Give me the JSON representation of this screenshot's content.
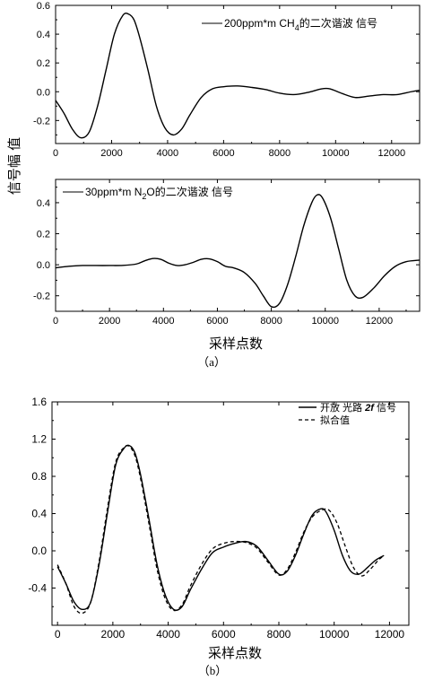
{
  "shared": {
    "ylabel": "信号幅 值",
    "xlabel": "采样点数"
  },
  "captions": {
    "a": "（a）",
    "b": "（b）"
  },
  "chart_data": [
    {
      "type": "line",
      "xlim": [
        0,
        13000
      ],
      "ylim": [
        -0.36,
        0.6
      ],
      "xticks": [
        0,
        2000,
        4000,
        6000,
        8000,
        10000,
        12000
      ],
      "yticks": [
        -0.2,
        0.0,
        0.2,
        0.4,
        0.6
      ],
      "xtick_labels": [
        "0",
        "2000",
        "4000",
        "6000",
        "8000",
        "10000",
        "12000"
      ],
      "ytick_labels": [
        "-0.2",
        "0.0",
        "0.2",
        "0.4",
        "0.6"
      ],
      "legend": {
        "position": "top-right",
        "prefix": "200ppm*m CH",
        "sub": "4",
        "suffix": "的二次谐波  信号"
      },
      "series": [
        {
          "name": "200ppm*m CH4的二次谐波  信号",
          "line": "solid",
          "x": [
            0,
            300,
            600,
            900,
            1200,
            1500,
            1800,
            2100,
            2400,
            2600,
            2800,
            3000,
            3300,
            3600,
            3900,
            4200,
            4500,
            4800,
            5200,
            5600,
            6000,
            6500,
            7000,
            7500,
            8000,
            8500,
            9000,
            9500,
            9800,
            10200,
            10700,
            11200,
            11700,
            12200,
            12700,
            13000
          ],
          "y": [
            -0.06,
            -0.15,
            -0.26,
            -0.32,
            -0.28,
            -0.1,
            0.15,
            0.4,
            0.53,
            0.54,
            0.5,
            0.38,
            0.15,
            -0.1,
            -0.25,
            -0.3,
            -0.26,
            -0.16,
            -0.04,
            0.02,
            0.035,
            0.04,
            0.03,
            0.015,
            -0.01,
            -0.02,
            -0.005,
            0.02,
            0.02,
            -0.01,
            -0.04,
            -0.03,
            -0.02,
            -0.02,
            0.0,
            0.01
          ]
        }
      ]
    },
    {
      "type": "line",
      "xlim": [
        0,
        13500
      ],
      "ylim": [
        -0.3,
        0.55
      ],
      "xticks": [
        0,
        2000,
        4000,
        6000,
        8000,
        10000,
        12000
      ],
      "yticks": [
        -0.2,
        0.0,
        0.2,
        0.4
      ],
      "xtick_labels": [
        "0",
        "2000",
        "4000",
        "6000",
        "8000",
        "10000",
        "12000"
      ],
      "ytick_labels": [
        "-0.2",
        "0.0",
        "0.2",
        "0.4"
      ],
      "legend": {
        "position": "top-left",
        "prefix": "30ppm*m  N",
        "sub": "2",
        "suffix": "O的二次谐波  信号"
      },
      "series": [
        {
          "name": "30ppm*m N2O的二次谐波  信号",
          "line": "solid",
          "x": [
            0,
            500,
            1000,
            1500,
            2000,
            2500,
            3000,
            3300,
            3600,
            3900,
            4200,
            4500,
            4800,
            5100,
            5400,
            5700,
            6000,
            6300,
            6600,
            7000,
            7400,
            7700,
            8000,
            8300,
            8600,
            8900,
            9200,
            9500,
            9700,
            9900,
            10200,
            10500,
            10800,
            11100,
            11400,
            11800,
            12200,
            12600,
            13000,
            13500
          ],
          "y": [
            -0.02,
            -0.01,
            -0.005,
            -0.005,
            -0.005,
            -0.004,
            0.005,
            0.025,
            0.04,
            0.035,
            0.01,
            -0.005,
            0.0,
            0.015,
            0.035,
            0.038,
            0.02,
            -0.01,
            -0.02,
            -0.05,
            -0.12,
            -0.2,
            -0.27,
            -0.25,
            -0.13,
            0.05,
            0.25,
            0.4,
            0.45,
            0.43,
            0.3,
            0.1,
            -0.1,
            -0.2,
            -0.21,
            -0.15,
            -0.07,
            -0.01,
            0.02,
            0.03
          ]
        }
      ]
    },
    {
      "type": "line",
      "xlim": [
        -200,
        12700
      ],
      "ylim": [
        -0.8,
        1.6
      ],
      "xticks": [
        0,
        2000,
        4000,
        6000,
        8000,
        10000,
        12000
      ],
      "yticks": [
        -0.4,
        0.0,
        0.4,
        0.8,
        1.2,
        1.6
      ],
      "xtick_labels": [
        "0",
        "2000",
        "4000",
        "6000",
        "8000",
        "10000",
        "12000"
      ],
      "ytick_labels": [
        "-0.4",
        "0.0",
        "0.4",
        "0.8",
        "1.2",
        "1.6"
      ],
      "legend": {
        "position": "top-right"
      },
      "series": [
        {
          "name": "开放  光路  2f 信号",
          "name_parts": [
            "开放  光路  ",
            "2f",
            " 信号"
          ],
          "line": "solid",
          "x": [
            0,
            300,
            600,
            900,
            1200,
            1500,
            1800,
            2100,
            2400,
            2600,
            2800,
            3000,
            3300,
            3600,
            3900,
            4200,
            4500,
            4800,
            5200,
            5600,
            6000,
            6400,
            6800,
            7200,
            7600,
            8000,
            8300,
            8600,
            8900,
            9200,
            9500,
            9700,
            10000,
            10300,
            10600,
            10900,
            11200,
            11500,
            11800
          ],
          "y": [
            -0.17,
            -0.35,
            -0.55,
            -0.63,
            -0.55,
            -0.15,
            0.4,
            0.92,
            1.1,
            1.13,
            1.05,
            0.82,
            0.35,
            -0.15,
            -0.48,
            -0.63,
            -0.6,
            -0.42,
            -0.2,
            -0.02,
            0.04,
            0.08,
            0.1,
            0.05,
            -0.1,
            -0.25,
            -0.22,
            -0.05,
            0.18,
            0.38,
            0.45,
            0.42,
            0.22,
            -0.05,
            -0.22,
            -0.25,
            -0.18,
            -0.1,
            -0.05
          ]
        },
        {
          "name": "拟合值",
          "line": "dashed",
          "x": [
            0,
            300,
            600,
            900,
            1200,
            1500,
            1800,
            2100,
            2400,
            2600,
            2800,
            3000,
            3300,
            3600,
            3900,
            4200,
            4500,
            4800,
            5200,
            5600,
            6000,
            6400,
            6800,
            7200,
            7600,
            8000,
            8300,
            8600,
            8900,
            9200,
            9500,
            9800,
            10100,
            10400,
            10700,
            11000,
            11300,
            11600,
            11800
          ],
          "y": [
            -0.15,
            -0.35,
            -0.6,
            -0.67,
            -0.55,
            -0.12,
            0.45,
            0.95,
            1.11,
            1.12,
            1.02,
            0.78,
            0.3,
            -0.2,
            -0.52,
            -0.64,
            -0.58,
            -0.38,
            -0.15,
            0.02,
            0.08,
            0.1,
            0.09,
            0.03,
            -0.12,
            -0.26,
            -0.2,
            -0.02,
            0.2,
            0.36,
            0.43,
            0.44,
            0.3,
            0.05,
            -0.18,
            -0.27,
            -0.2,
            -0.1,
            -0.05
          ]
        }
      ]
    }
  ]
}
